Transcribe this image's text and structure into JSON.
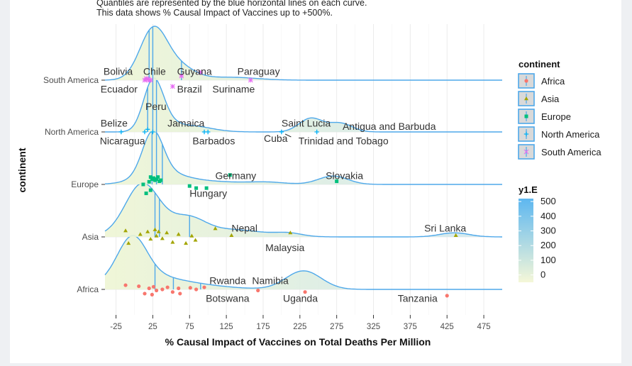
{
  "chart_data": {
    "type": "ridgeline",
    "subtitle_lines": [
      "Quantiles are represented by the blue horizontal lines on each curve.",
      "This data shows % Causal Impact of Vaccines up to +500%."
    ],
    "xlabel": "% Causal Impact of Vaccines on Total Deaths Per Million",
    "ylabel": "continent",
    "xlim": [
      -40,
      500
    ],
    "xticks": [
      -25,
      25,
      75,
      125,
      175,
      225,
      275,
      325,
      375,
      425,
      475
    ],
    "categories": [
      "Africa",
      "Asia",
      "Europe",
      "North America",
      "South America"
    ],
    "quantile_note": "Quantiles shown as vertical lines inside each density",
    "series": [
      {
        "name": "Africa",
        "color": "#f8766d",
        "quantiles": [
          28,
          53,
          90
        ],
        "points": [
          [
            -12,
            0.08
          ],
          [
            6,
            0.06
          ],
          [
            14,
            -0.08
          ],
          [
            20,
            0.02
          ],
          [
            24,
            -0.1
          ],
          [
            26,
            0.05
          ],
          [
            30,
            -0.02
          ],
          [
            38,
            0.0
          ],
          [
            45,
            0.04
          ],
          [
            52,
            -0.05
          ],
          [
            60,
            0.02
          ],
          [
            62,
            -0.08
          ],
          [
            76,
            0.03
          ],
          [
            84,
            0.0
          ],
          [
            95,
            0.04
          ],
          [
            168,
            -0.02
          ],
          [
            232,
            -0.05
          ],
          [
            425,
            -0.12
          ]
        ],
        "labels": [
          {
            "text": "Rwanda",
            "x": 102,
            "dy": 0.17,
            "anchor": "start"
          },
          {
            "text": "Namibia",
            "x": 160,
            "dy": 0.17,
            "anchor": "start"
          },
          {
            "text": "Botswana",
            "x": 97,
            "dy": -0.17,
            "anchor": "start"
          },
          {
            "text": "Uganda",
            "x": 202,
            "dy": -0.17,
            "anchor": "start"
          },
          {
            "text": "Tanzania",
            "x": 358,
            "dy": -0.17,
            "anchor": "start"
          }
        ]
      },
      {
        "name": "Asia",
        "color": "#a3a500",
        "quantiles": [
          28,
          34,
          75
        ],
        "points": [
          [
            -12,
            0.12
          ],
          [
            -8,
            -0.12
          ],
          [
            8,
            0.05
          ],
          [
            18,
            0.1
          ],
          [
            22,
            -0.04
          ],
          [
            28,
            0.14
          ],
          [
            30,
            0.02
          ],
          [
            33,
            0.1
          ],
          [
            38,
            -0.03
          ],
          [
            44,
            0.08
          ],
          [
            52,
            -0.1
          ],
          [
            60,
            0.05
          ],
          [
            70,
            -0.12
          ],
          [
            78,
            0.02
          ],
          [
            83,
            -0.06
          ],
          [
            110,
            0.16
          ],
          [
            132,
            0.03
          ],
          [
            212,
            0.08
          ],
          [
            437,
            0.03
          ]
        ],
        "labels": [
          {
            "text": "Nepal",
            "x": 132,
            "dy": 0.17,
            "anchor": "start"
          },
          {
            "text": "Malaysia",
            "x": 178,
            "dy": -0.2,
            "anchor": "start"
          },
          {
            "text": "Sri Lanka",
            "x": 394,
            "dy": 0.17,
            "anchor": "start"
          }
        ]
      },
      {
        "name": "Europe",
        "color": "#00bf7d",
        "quantiles": [
          24,
          30,
          38
        ],
        "points": [
          [
            20,
            0.05
          ],
          [
            22,
            0.14
          ],
          [
            24,
            0.1
          ],
          [
            26,
            0.12
          ],
          [
            28,
            0.08
          ],
          [
            30,
            0.1
          ],
          [
            32,
            0.14
          ],
          [
            34,
            0.06
          ],
          [
            36,
            0.08
          ],
          [
            12,
            0.0
          ],
          [
            16,
            -0.17
          ],
          [
            22,
            -0.11
          ],
          [
            75,
            -0.03
          ],
          [
            84,
            -0.07
          ],
          [
            98,
            -0.07
          ],
          [
            130,
            0.18
          ],
          [
            275,
            0.06
          ]
        ],
        "labels": [
          {
            "text": "Germany",
            "x": 110,
            "dy": 0.17,
            "anchor": "start"
          },
          {
            "text": "Hungary",
            "x": 75,
            "dy": -0.17,
            "anchor": "start"
          },
          {
            "text": "Slovakia",
            "x": 260,
            "dy": 0.17,
            "anchor": "start"
          }
        ]
      },
      {
        "name": "North America",
        "color": "#00b0f6",
        "quantiles": [
          18,
          25,
          30
        ],
        "points": [
          [
            -18,
            0.0
          ],
          [
            14,
            0.0
          ],
          [
            18,
            0.05
          ],
          [
            25,
            0.0
          ],
          [
            95,
            0.0
          ],
          [
            100,
            0.0
          ],
          [
            200,
            0.0
          ],
          [
            248,
            0.0
          ]
        ],
        "labels": [
          {
            "text": "Belize",
            "x": -46,
            "dy": 0.17,
            "anchor": "start"
          },
          {
            "text": "Jamaica",
            "x": 45,
            "dy": 0.17,
            "anchor": "start"
          },
          {
            "text": "Saint Lucia",
            "x": 200,
            "dy": 0.17,
            "anchor": "start"
          },
          {
            "text": "Antigua and Barbuda",
            "x": 283,
            "dy": 0.11,
            "anchor": "start"
          },
          {
            "text": "Nicaragua",
            "x": -47,
            "dy": -0.17,
            "anchor": "start"
          },
          {
            "text": "Barbados",
            "x": 79,
            "dy": -0.17,
            "anchor": "start"
          },
          {
            "text": "Cuba",
            "x": 176,
            "dy": -0.12,
            "anchor": "start"
          },
          {
            "text": "Trinidad and Tobago",
            "x": 223,
            "dy": -0.17,
            "anchor": "start"
          }
        ]
      },
      {
        "name": "South America",
        "color": "#e76bf3",
        "quantiles": [
          20,
          25,
          64
        ],
        "points": [
          [
            14,
            0.0
          ],
          [
            16,
            0.03
          ],
          [
            19,
            0.02
          ],
          [
            20,
            0.0
          ],
          [
            22,
            0.0
          ],
          [
            52,
            -0.12
          ],
          [
            64,
            0.08
          ],
          [
            90,
            0.15
          ],
          [
            158,
            0.0
          ]
        ],
        "labels": [
          {
            "text": "Bolivia",
            "x": -42,
            "dy": 0.17,
            "anchor": "start"
          },
          {
            "text": "Chile",
            "x": 12,
            "dy": 0.17,
            "anchor": "start"
          },
          {
            "text": "Guyana",
            "x": 58,
            "dy": 0.17,
            "anchor": "start"
          },
          {
            "text": "Paraguay",
            "x": 140,
            "dy": 0.17,
            "anchor": "start"
          },
          {
            "text": "Ecuador",
            "x": -46,
            "dy": -0.17,
            "anchor": "start"
          },
          {
            "text": "Brazil",
            "x": 58,
            "dy": -0.17,
            "anchor": "start"
          },
          {
            "text": "Suriname",
            "x": 106,
            "dy": -0.17,
            "anchor": "start"
          },
          {
            "text": "Peru",
            "x": 15,
            "dy": -0.5,
            "anchor": "start"
          }
        ]
      }
    ],
    "legend": {
      "title": "continent",
      "items": [
        "Africa",
        "Asia",
        "Europe",
        "North America",
        "South America"
      ],
      "colors": [
        "#f8766d",
        "#a3a500",
        "#00bf7d",
        "#00b0f6",
        "#e76bf3"
      ],
      "placement": "right"
    },
    "colorbar": {
      "title": "y1.E",
      "ticks": [
        500,
        400,
        300,
        200,
        100,
        0
      ],
      "min": -50,
      "max": 520,
      "low_color": "#f5f7d8",
      "high_color": "#5db7f0"
    },
    "density_fill_low": "#eef5d3",
    "density_fill_high": "#cde6ef",
    "line_color": "#4ea8ea",
    "grid": true
  }
}
